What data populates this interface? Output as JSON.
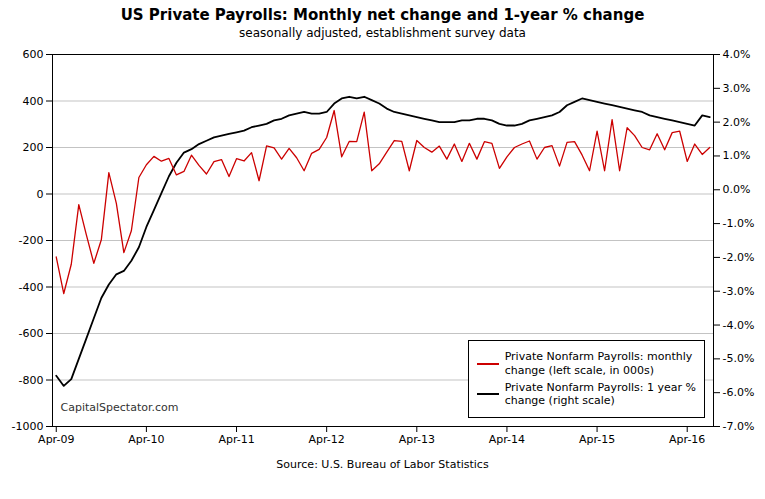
{
  "chart_data": {
    "type": "line",
    "title": "US Private Payrolls: Monthly net change and 1-year % change",
    "subtitle": "seasonally adjusted, establishment survey data",
    "source": "Source: U.S. Bureau of Labor Statistics",
    "annotations": [
      "CapitalSpectator.com"
    ],
    "categories": [
      "Apr-09",
      null,
      null,
      null,
      null,
      null,
      null,
      null,
      null,
      null,
      null,
      null,
      "Apr-10",
      null,
      null,
      null,
      null,
      null,
      null,
      null,
      null,
      null,
      null,
      null,
      "Apr-11",
      null,
      null,
      null,
      null,
      null,
      null,
      null,
      null,
      null,
      null,
      null,
      "Apr-12",
      null,
      null,
      null,
      null,
      null,
      null,
      null,
      null,
      null,
      null,
      null,
      "Apr-13",
      null,
      null,
      null,
      null,
      null,
      null,
      null,
      null,
      null,
      null,
      null,
      "Apr-14",
      null,
      null,
      null,
      null,
      null,
      null,
      null,
      null,
      null,
      null,
      null,
      "Apr-15",
      null,
      null,
      null,
      null,
      null,
      null,
      null,
      null,
      null,
      null,
      null,
      "Apr-16",
      null,
      null,
      null
    ],
    "series": [
      {
        "name": "Private Nonfarm Payrolls: monthly\nchange (left scale, in 000s)",
        "color": "#cc0000",
        "values": [
          -271,
          -428,
          -302,
          -46,
          -175,
          -298,
          -197,
          92,
          -40,
          -252,
          -158,
          71,
          126,
          162,
          141,
          153,
          82,
          97,
          167,
          123,
          86,
          139,
          148,
          75,
          152,
          142,
          178,
          57,
          207,
          198,
          150,
          196,
          156,
          100,
          175,
          192,
          243,
          359,
          160,
          226,
          225,
          352,
          100,
          130,
          180,
          230,
          226,
          100,
          230,
          200,
          180,
          206,
          150,
          215,
          140,
          218,
          150,
          225,
          218,
          110,
          160,
          200,
          215,
          228,
          150,
          200,
          208,
          120,
          222,
          225,
          168,
          100,
          270,
          100,
          320,
          100,
          285,
          251,
          200,
          190,
          259,
          190,
          264,
          270,
          140,
          215,
          170,
          200
        ]
      },
      {
        "name": "Private Nonfarm Payrolls:  1 year %\nchange (right scale)",
        "color": "#000000",
        "axis": "y2",
        "values": [
          -5.5,
          -5.8,
          -5.6,
          -5.0,
          -4.4,
          -3.8,
          -3.2,
          -2.8,
          -2.5,
          -2.4,
          -2.1,
          -1.7,
          -1.1,
          -0.6,
          -0.1,
          0.4,
          0.8,
          1.1,
          1.2,
          1.35,
          1.45,
          1.55,
          1.6,
          1.65,
          1.7,
          1.75,
          1.85,
          1.9,
          1.95,
          2.05,
          2.1,
          2.2,
          2.25,
          2.3,
          2.25,
          2.25,
          2.3,
          2.55,
          2.7,
          2.75,
          2.7,
          2.75,
          2.65,
          2.55,
          2.4,
          2.3,
          2.25,
          2.2,
          2.15,
          2.1,
          2.05,
          2.0,
          2.0,
          2.0,
          2.05,
          2.05,
          2.1,
          2.1,
          2.05,
          1.95,
          1.9,
          1.9,
          1.95,
          2.05,
          2.1,
          2.15,
          2.2,
          2.3,
          2.5,
          2.6,
          2.7,
          2.65,
          2.6,
          2.55,
          2.5,
          2.45,
          2.4,
          2.35,
          2.3,
          2.2,
          2.15,
          2.1,
          2.05,
          2.0,
          1.95,
          1.9,
          2.2,
          2.15
        ]
      }
    ],
    "ylim": [
      -1000,
      600
    ],
    "yticks": [
      -1000,
      -800,
      -600,
      -400,
      -200,
      0,
      200,
      400,
      600
    ],
    "y2lim": [
      -7.0,
      4.0
    ],
    "y2ticks": [
      {
        "value": -7.0,
        "label": "-7.0%"
      },
      {
        "value": -6.0,
        "label": "-6.0%"
      },
      {
        "value": -5.0,
        "label": "-5.0%"
      },
      {
        "value": -4.0,
        "label": "-4.0%"
      },
      {
        "value": -3.0,
        "label": "-3.0%"
      },
      {
        "value": -2.0,
        "label": "-2.0%"
      },
      {
        "value": -1.0,
        "label": "-1.0%"
      },
      {
        "value": 0.0,
        "label": "0.0%"
      },
      {
        "value": 1.0,
        "label": "1.0%"
      },
      {
        "value": 2.0,
        "label": "2.0%"
      },
      {
        "value": 3.0,
        "label": "3.0%"
      },
      {
        "value": 4.0,
        "label": "4.0%"
      }
    ],
    "grid": true,
    "legend": "lower right"
  }
}
